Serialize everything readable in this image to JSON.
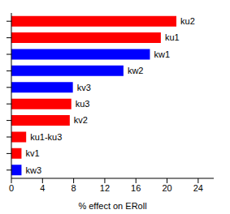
{
  "chart_data": {
    "type": "bar",
    "orientation": "horizontal",
    "xlabel": "% effect on ERoll",
    "categories": [
      "ku2",
      "ku1",
      "kw1",
      "kw2",
      "kv3",
      "ku3",
      "kv2",
      "ku1-ku3",
      "kv1",
      "kw3"
    ],
    "values": [
      21.2,
      19.2,
      17.8,
      14.4,
      7.9,
      7.7,
      7.5,
      1.9,
      1.3,
      1.3
    ],
    "colors": [
      "#ff0000",
      "#ff0000",
      "#0000ff",
      "#0000ff",
      "#0000ff",
      "#ff0000",
      "#ff0000",
      "#ff0000",
      "#ff0000",
      "#0000ff"
    ],
    "xlim": [
      0,
      26
    ],
    "xticks": [
      0,
      4,
      8,
      12,
      16,
      20,
      24
    ],
    "tick_labels": "x",
    "grid": false
  }
}
